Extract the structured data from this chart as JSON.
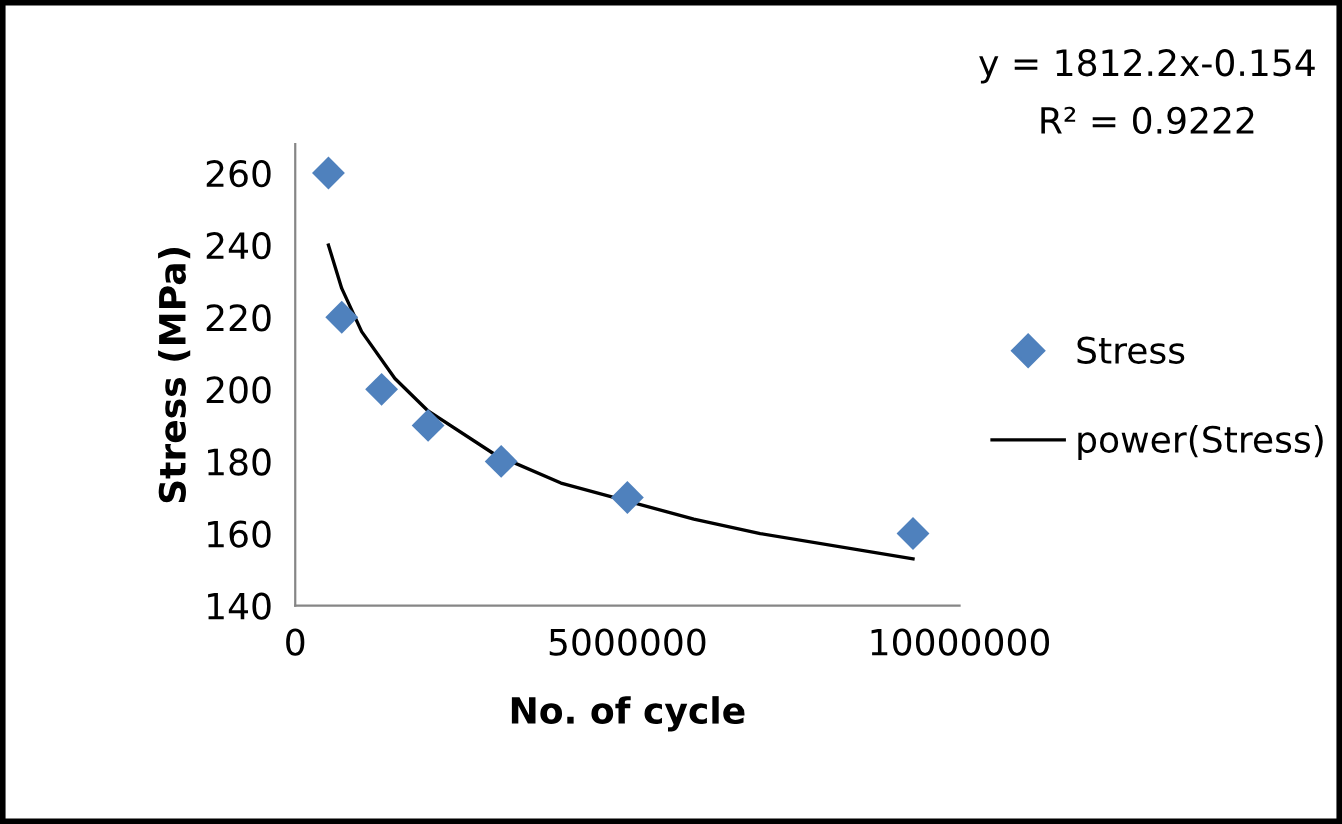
{
  "chart_data": {
    "type": "scatter",
    "xlabel": "No. of cycle",
    "ylabel": "Stress (MPa)",
    "xlim": [
      0,
      10000000
    ],
    "xticks": [
      0,
      5000000,
      10000000
    ],
    "ylim": [
      140,
      268
    ],
    "yticks": [
      140,
      160,
      180,
      200,
      220,
      240,
      260
    ],
    "grid": false,
    "legend": "right",
    "marker": "diamond",
    "annotations": [
      "y = 1812.2x-0.154",
      "R² = 0.9222"
    ],
    "series": [
      {
        "name": "Stress",
        "color": "#4f81bd",
        "x": [
          500000,
          700000,
          1300000,
          2000000,
          3100000,
          5000000,
          9300000
        ],
        "values": [
          260,
          220,
          200,
          190,
          180,
          170,
          160
        ]
      },
      {
        "name": "power(Stress)",
        "type": "line",
        "color": "#000000",
        "marker": "none",
        "x": [
          500000,
          700000,
          1000000,
          1500000,
          2000000,
          3000000,
          4000000,
          6000000,
          7000000,
          9300000
        ],
        "values": [
          240,
          228,
          216,
          203,
          194,
          182,
          174,
          164,
          160,
          153
        ]
      }
    ]
  }
}
